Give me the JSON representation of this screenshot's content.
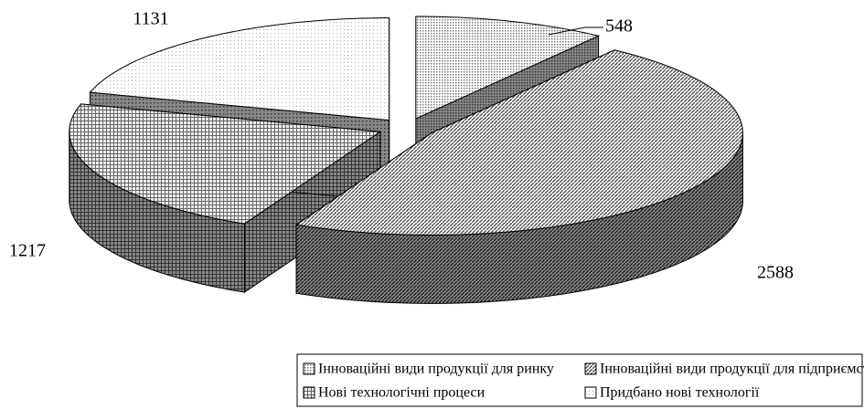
{
  "chart_data": {
    "type": "pie3d",
    "categories": [
      "Інноваційні види продукції для ринку",
      "Інноваційні види продукції для підприємства",
      "Нові технологічні процеси",
      "Придбано нові технології"
    ],
    "values": [
      548,
      2588,
      1217,
      1131
    ],
    "legend": "bottom"
  }
}
